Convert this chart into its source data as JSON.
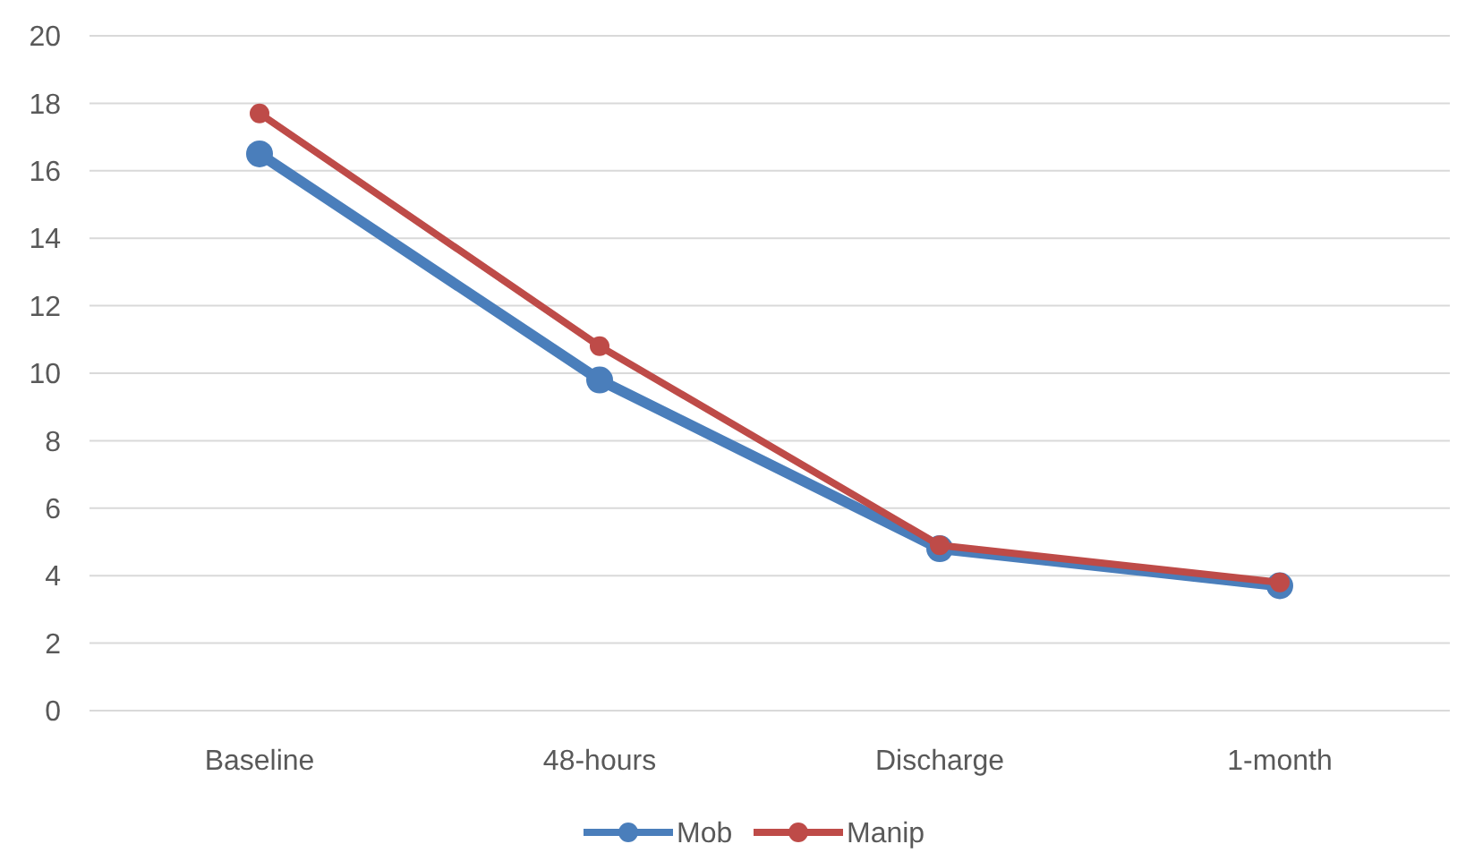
{
  "chart_data": {
    "type": "line",
    "categories": [
      "Baseline",
      "48-hours",
      "Discharge",
      "1-month"
    ],
    "series": [
      {
        "name": "Mob",
        "color": "#4a7ebb",
        "values": [
          16.5,
          9.8,
          4.8,
          3.7
        ]
      },
      {
        "name": "Manip",
        "color": "#be4b48",
        "values": [
          17.7,
          10.8,
          4.9,
          3.8
        ]
      }
    ],
    "ylim": [
      0,
      20
    ],
    "yticks": [
      0,
      2,
      4,
      6,
      8,
      10,
      12,
      14,
      16,
      18,
      20
    ],
    "grid": "y",
    "legend": "bottom",
    "marker": "circle",
    "line_style": "solid"
  }
}
